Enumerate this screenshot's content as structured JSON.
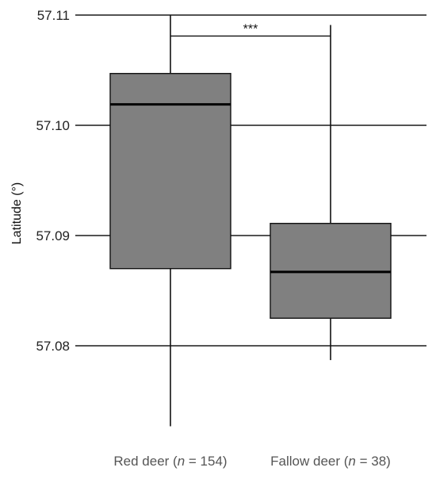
{
  "chart_data": {
    "type": "box",
    "title": "",
    "xlabel": "",
    "ylabel": "Latitude (°)",
    "ylim": [
      57.0725,
      57.11
    ],
    "yticks": [
      "57.08",
      "57.09",
      "57.10",
      "57.11"
    ],
    "grid": "horizontal",
    "categories": [
      {
        "pre": "Red deer (",
        "n": "n",
        "post": " = 154)"
      },
      {
        "pre": "Fallow deer (",
        "n": "n",
        "post": " = 38)"
      }
    ],
    "boxes": [
      {
        "whisker_low": 57.0727,
        "q1": 57.087,
        "median": 57.1019,
        "q3": 57.1047,
        "whisker_high": 57.11
      },
      {
        "whisker_low": 57.0787,
        "q1": 57.0825,
        "median": 57.0867,
        "q3": 57.0911,
        "whisker_high": 57.1091
      }
    ],
    "box_color": "#808080",
    "significance": {
      "label": "***",
      "from": 0,
      "to": 1,
      "y": 57.1081
    }
  }
}
